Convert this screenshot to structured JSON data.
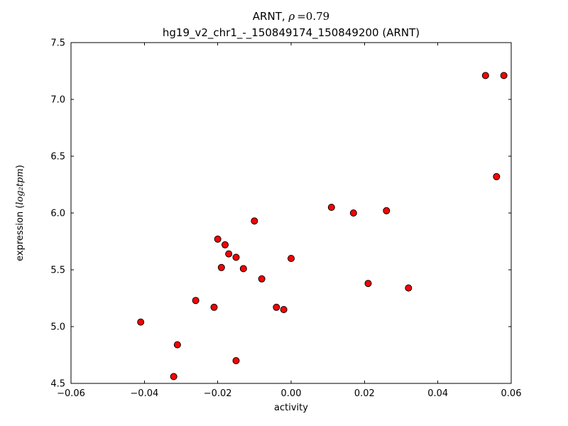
{
  "figure": {
    "title_prefix": "ARNT, ",
    "title_rho": "ρ",
    "title_eq": "=0.79",
    "subtitle": "hg19_v2_chr1_-_150849174_150849200 (ARNT)",
    "xlabel": "activity",
    "ylabel_prefix": "expression (",
    "ylabel_math": "log₂tpm",
    "ylabel_suffix": ")"
  },
  "chart_data": {
    "type": "scatter",
    "title": "ARNT, ρ=0.79",
    "subtitle": "hg19_v2_chr1_-_150849174_150849200 (ARNT)",
    "xlabel": "activity",
    "ylabel": "expression (log2 tpm)",
    "xlim": [
      -0.06,
      0.06
    ],
    "ylim": [
      4.5,
      7.5
    ],
    "xticks": [
      -0.06,
      -0.04,
      -0.02,
      0.0,
      0.02,
      0.04,
      0.06
    ],
    "xtick_labels": [
      "−0.06",
      "−0.04",
      "−0.02",
      "0.00",
      "0.02",
      "0.04",
      "0.06"
    ],
    "yticks": [
      4.5,
      5.0,
      5.5,
      6.0,
      6.5,
      7.0,
      7.5
    ],
    "ytick_labels": [
      "4.5",
      "5.0",
      "5.5",
      "6.0",
      "6.5",
      "7.0",
      "7.5"
    ],
    "grid": false,
    "legend": false,
    "marker": {
      "shape": "circle",
      "fill_color": "#ff0000",
      "edge_color": "#000000",
      "radius_px": 4.5
    },
    "points": [
      [
        -0.041,
        5.04
      ],
      [
        -0.032,
        4.56
      ],
      [
        -0.031,
        4.84
      ],
      [
        -0.026,
        5.23
      ],
      [
        -0.021,
        5.17
      ],
      [
        -0.02,
        5.77
      ],
      [
        -0.019,
        5.52
      ],
      [
        -0.018,
        5.72
      ],
      [
        -0.017,
        5.64
      ],
      [
        -0.015,
        5.61
      ],
      [
        -0.015,
        4.7
      ],
      [
        -0.013,
        5.51
      ],
      [
        -0.01,
        5.93
      ],
      [
        -0.008,
        5.42
      ],
      [
        -0.004,
        5.17
      ],
      [
        -0.002,
        5.15
      ],
      [
        0.0,
        5.6
      ],
      [
        0.011,
        6.05
      ],
      [
        0.017,
        6.0
      ],
      [
        0.021,
        5.38
      ],
      [
        0.026,
        6.02
      ],
      [
        0.032,
        5.34
      ],
      [
        0.053,
        7.21
      ],
      [
        0.056,
        6.32
      ],
      [
        0.058,
        7.21
      ]
    ]
  }
}
